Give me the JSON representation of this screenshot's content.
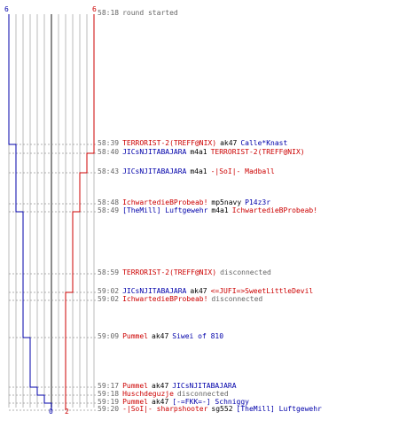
{
  "colors": {
    "red": "#cc0000",
    "blue": "#0000aa",
    "grid": "#bbbbbb",
    "gridDark": "#666666",
    "text": "#666666"
  },
  "timeline": {
    "start_score": {
      "blue": "6",
      "red": "6"
    },
    "end_score": {
      "blue": "0",
      "red": "2"
    },
    "blue_steps": [
      6,
      5,
      4,
      3,
      2,
      1,
      0
    ],
    "red_steps": [
      6,
      5,
      4,
      3,
      2
    ]
  },
  "events": [
    {
      "time": "58:18",
      "parts": [
        {
          "text": "round started",
          "color": "sys"
        }
      ]
    },
    {
      "time": "58:39",
      "parts": [
        {
          "text": "TERRORIST-2(TREFF@NIX)",
          "color": "red"
        },
        {
          "text": "ak47",
          "color": "plain"
        },
        {
          "text": "Calle*Knast",
          "color": "blue"
        }
      ]
    },
    {
      "time": "58:40",
      "parts": [
        {
          "text": "JICsNJITABAJARA",
          "color": "blue"
        },
        {
          "text": "m4a1",
          "color": "plain"
        },
        {
          "text": "TERRORIST-2(TREFF@NIX)",
          "color": "red"
        }
      ]
    },
    {
      "time": "58:43",
      "parts": [
        {
          "text": "JICsNJITABAJARA",
          "color": "blue"
        },
        {
          "text": "m4a1",
          "color": "plain"
        },
        {
          "text": "-|SoI|- Madball",
          "color": "red"
        }
      ]
    },
    {
      "time": "58:48",
      "parts": [
        {
          "text": "IchwartedieBProbeab!",
          "color": "red"
        },
        {
          "text": "mp5navy",
          "color": "plain"
        },
        {
          "text": "P14z3r",
          "color": "blue"
        }
      ]
    },
    {
      "time": "58:49",
      "parts": [
        {
          "text": "[TheMill] Luftgewehr",
          "color": "blue"
        },
        {
          "text": "m4a1",
          "color": "plain"
        },
        {
          "text": "IchwartedieBProbeab!",
          "color": "red"
        }
      ]
    },
    {
      "time": "58:59",
      "parts": [
        {
          "text": "TERRORIST-2(TREFF@NIX)",
          "color": "red"
        },
        {
          "text": "disconnected",
          "color": "sys"
        }
      ]
    },
    {
      "time": "59:02",
      "parts": [
        {
          "text": "JICsNJITABAJARA",
          "color": "blue"
        },
        {
          "text": "ak47",
          "color": "plain"
        },
        {
          "text": "<=JUFI=>SweetLittleDevil",
          "color": "red"
        }
      ]
    },
    {
      "time": "59:02",
      "parts": [
        {
          "text": "IchwartedieBProbeab!",
          "color": "red"
        },
        {
          "text": "disconnected",
          "color": "sys"
        }
      ]
    },
    {
      "time": "59:09",
      "parts": [
        {
          "text": "Pummel",
          "color": "red"
        },
        {
          "text": "ak47",
          "color": "plain"
        },
        {
          "text": "Siwei of 810",
          "color": "blue"
        }
      ]
    },
    {
      "time": "59:17",
      "parts": [
        {
          "text": "Pummel",
          "color": "red"
        },
        {
          "text": "ak47",
          "color": "plain"
        },
        {
          "text": "JICsNJITABAJARA",
          "color": "blue"
        }
      ]
    },
    {
      "time": "59:18",
      "parts": [
        {
          "text": "Huschdeguzje",
          "color": "red"
        },
        {
          "text": "disconnected",
          "color": "sys"
        }
      ]
    },
    {
      "time": "59:19",
      "parts": [
        {
          "text": "Pummel",
          "color": "red"
        },
        {
          "text": "ak47",
          "color": "plain"
        },
        {
          "text": "[-=FKK=-] Schniggy",
          "color": "blue"
        }
      ]
    },
    {
      "time": "59:20",
      "parts": [
        {
          "text": "-|SoI|- sharpshooter",
          "color": "red"
        },
        {
          "text": "sg552",
          "color": "plain"
        },
        {
          "text": "[TheMill] Luftgewehr",
          "color": "blue"
        }
      ]
    }
  ]
}
